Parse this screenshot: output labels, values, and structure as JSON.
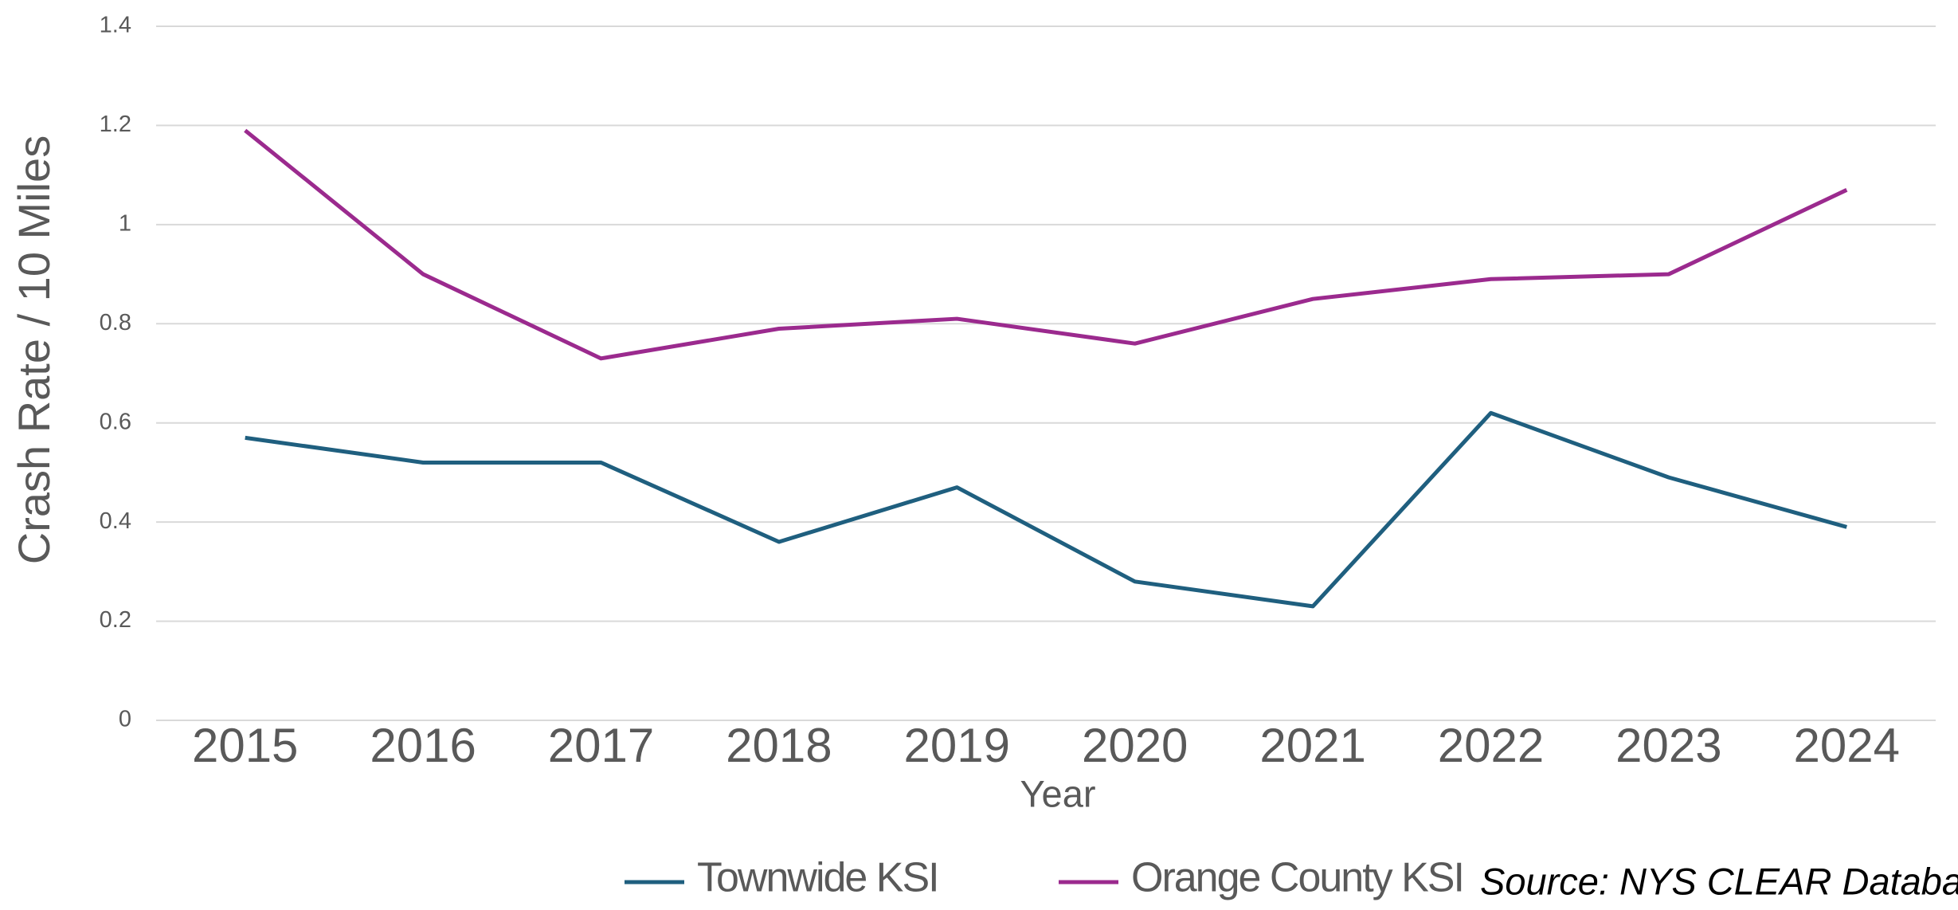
{
  "chart_data": {
    "type": "line",
    "y_label": "Crash Rate / 10 Miles",
    "x_label": "Year",
    "annotation": "Source: NYS CLEAR Database",
    "categories": [
      "2015",
      "2016",
      "2017",
      "2018",
      "2019",
      "2020",
      "2021",
      "2022",
      "2023",
      "2024"
    ],
    "series": [
      {
        "name": "Townwide KSI",
        "color": "#1f5f7f",
        "values": [
          0.57,
          0.52,
          0.52,
          0.36,
          0.47,
          0.28,
          0.23,
          0.62,
          0.49,
          0.39
        ]
      },
      {
        "name": "Orange County KSI",
        "color": "#9b2a8e",
        "values": [
          1.19,
          0.9,
          0.73,
          0.79,
          0.81,
          0.76,
          0.85,
          0.89,
          0.9,
          1.07
        ]
      }
    ],
    "ylim": [
      0,
      1.4
    ],
    "yticks": [
      0,
      0.2,
      0.4,
      0.6,
      0.8,
      1,
      1.2,
      1.4
    ],
    "grid": true,
    "legend": "bottom"
  }
}
